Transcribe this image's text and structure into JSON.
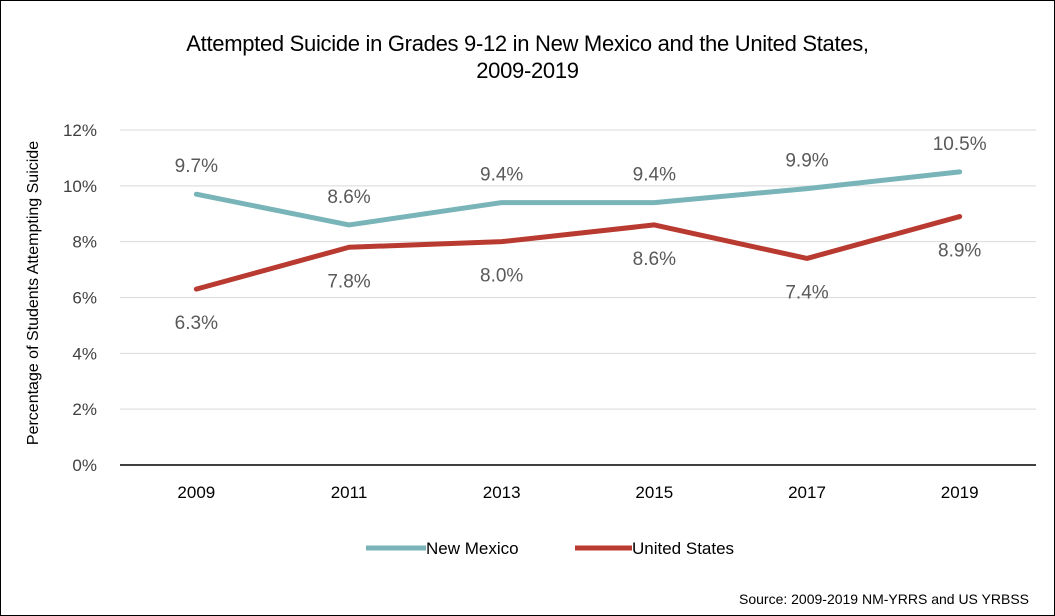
{
  "chart_data": {
    "type": "line",
    "title": "Attempted Suicide in Grades 9-12 in New Mexico and the United States, 2009-2019",
    "title_lines": [
      "Attempted Suicide in Grades 9-12 in New Mexico and the United States,",
      "2009-2019"
    ],
    "xlabel": "",
    "ylabel": "Percentage of Students Attempting Suicide",
    "categories": [
      "2009",
      "2011",
      "2013",
      "2015",
      "2017",
      "2019"
    ],
    "y_ticks": [
      "0%",
      "2%",
      "4%",
      "6%",
      "8%",
      "10%",
      "12%"
    ],
    "ylim": [
      0,
      12
    ],
    "grid": true,
    "legend_position": "bottom",
    "series": [
      {
        "name": "New Mexico",
        "color": "#79b4b8",
        "values": [
          9.7,
          8.6,
          9.4,
          9.4,
          9.9,
          10.5
        ],
        "labels": [
          "9.7%",
          "8.6%",
          "9.4%",
          "9.4%",
          "9.9%",
          "10.5%"
        ],
        "label_position": "above"
      },
      {
        "name": "United States",
        "color": "#b93a30",
        "values": [
          6.3,
          7.8,
          8.0,
          8.6,
          7.4,
          8.9
        ],
        "labels": [
          "6.3%",
          "7.8%",
          "8.0%",
          "8.6%",
          "7.4%",
          "8.9%"
        ],
        "label_position": "below"
      }
    ],
    "source": "Source: 2009-2019 NM-YRRS and US YRBSS"
  }
}
